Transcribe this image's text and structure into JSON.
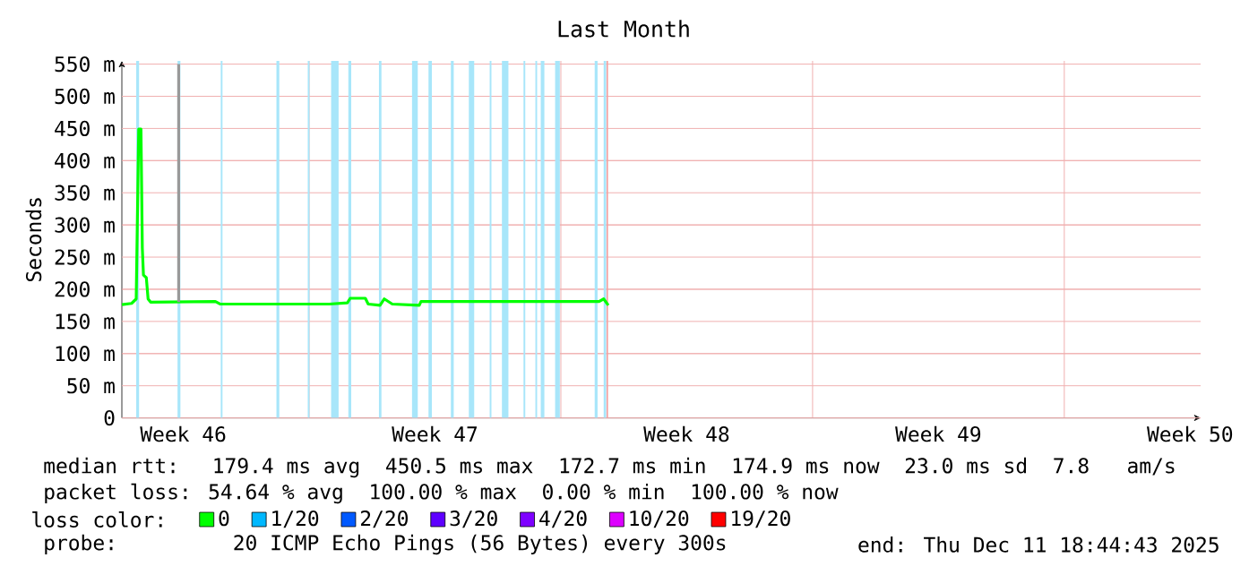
{
  "chart_data": {
    "type": "line",
    "title": "Last Month",
    "ylabel": "Seconds",
    "legend_title": "loss color:",
    "legend": "bottom",
    "grid": true,
    "xlim": [
      "2025-11-11T19:00",
      "2025-12-11T19:00"
    ],
    "ylim": [
      0,
      555
    ],
    "xticks": [
      {
        "value": "2025-11-13T12:00",
        "label": "Week 46"
      },
      {
        "value": "2025-11-17T00:00",
        "label": null
      },
      {
        "value": "2025-11-20T12:00",
        "label": "Week 47"
      },
      {
        "value": "2025-11-24T00:00",
        "label": null
      },
      {
        "value": "2025-11-27T12:00",
        "label": "Week 48"
      },
      {
        "value": "2025-12-01T00:00",
        "label": null
      },
      {
        "value": "2025-12-04T12:00",
        "label": "Week 49"
      },
      {
        "value": "2025-12-08T00:00",
        "label": null
      },
      {
        "value": "2025-12-11T12:00",
        "label": "Week 50"
      }
    ],
    "yticks": [
      0,
      {
        "value": 50,
        "label": "50 m"
      },
      {
        "value": 100,
        "label": "100 m"
      },
      {
        "value": 150,
        "label": "150 m"
      },
      {
        "value": 200,
        "label": "200 m"
      },
      {
        "value": 250,
        "label": "250 m"
      },
      {
        "value": 300,
        "label": "300 m"
      },
      {
        "value": 350,
        "label": "350 m"
      },
      {
        "value": 400,
        "label": "400 m"
      },
      {
        "value": 450,
        "label": "450 m"
      },
      {
        "value": 500,
        "label": "500 m"
      },
      {
        "value": 550,
        "label": "550 m"
      }
    ],
    "series": [
      {
        "name": "0",
        "color": "#00ff00",
        "x": [
          "2025-11-11T19:00",
          "2025-11-12T01:30",
          "2025-11-12T04:35",
          "2025-11-12T06:15",
          "2025-11-12T07:45",
          "2025-11-12T08:40",
          "2025-11-12T09:25",
          "2025-11-12T11:20",
          "2025-11-12T12:30",
          "2025-11-12T14:10",
          "2025-11-14T09:25",
          "2025-11-14T12:30",
          "2025-11-17T13:30",
          "2025-11-18T01:30",
          "2025-11-18T03:25",
          "2025-11-18T13:30",
          "2025-11-18T15:25",
          "2025-11-18T23:20",
          "2025-11-19T02:10",
          "2025-11-19T07:30",
          "2025-11-20T01:30",
          "2025-11-20T02:40",
          "2025-11-25T01:30",
          "2025-11-25T04:35",
          "2025-11-25T07:40"
        ],
        "values": [
          176,
          178,
          185,
          449,
          449,
          264,
          222,
          218,
          185,
          180,
          181,
          177,
          177,
          179,
          186,
          186,
          177,
          175,
          185,
          177,
          175,
          181,
          181,
          185,
          175
        ]
      },
      {
        "color": "#999999",
        "x": [
          "2025-11-13T08:55",
          "2025-11-13T08:55"
        ],
        "values": [
          180,
          550
        ]
      },
      {
        "name": "1/20",
        "color": "#00b8ff"
      },
      {
        "name": "2/20",
        "color": "#0059ff"
      },
      {
        "name": "3/20",
        "color": "#5e00ff"
      },
      {
        "name": "4/20",
        "color": "#7e00ff"
      },
      {
        "name": "10/20",
        "color": "#dd00ff"
      },
      {
        "name": "19/20",
        "color": "#ff0000"
      }
    ],
    "bands": [
      {
        "axis": "x",
        "from": "2025-11-12T04:35",
        "to": "2025-11-12T06:30",
        "color": "#a8e6fa"
      },
      {
        "axis": "x",
        "from": "2025-11-13T08:10",
        "to": "2025-11-13T10:05",
        "color": "#a8e6fa"
      },
      {
        "axis": "x",
        "from": "2025-11-14T13:00",
        "to": "2025-11-14T14:10",
        "color": "#a8e6fa"
      },
      {
        "axis": "x",
        "from": "2025-11-16T02:10",
        "to": "2025-11-16T04:05",
        "color": "#a8e6fa"
      },
      {
        "axis": "x",
        "from": "2025-11-16T23:05",
        "to": "2025-11-17T00:15",
        "color": "#a8e6fa"
      },
      {
        "axis": "x",
        "from": "2025-11-17T14:40",
        "to": "2025-11-17T19:40",
        "color": "#a8e6fa"
      },
      {
        "axis": "x",
        "from": "2025-11-18T02:10",
        "to": "2025-11-18T04:05",
        "color": "#a8e6fa"
      },
      {
        "axis": "x",
        "from": "2025-11-18T22:35",
        "to": "2025-11-19T00:15",
        "color": "#a8e6fa"
      },
      {
        "axis": "x",
        "from": "2025-11-19T20:40",
        "to": "2025-11-20T00:30",
        "color": "#a8e6fa"
      },
      {
        "axis": "x",
        "from": "2025-11-20T07:40",
        "to": "2025-11-20T09:55",
        "color": "#a8e6fa"
      },
      {
        "axis": "x",
        "from": "2025-11-20T22:35",
        "to": "2025-11-21T00:30",
        "color": "#a8e6fa"
      },
      {
        "axis": "x",
        "from": "2025-11-21T10:35",
        "to": "2025-11-21T14:10",
        "color": "#a8e6fa"
      },
      {
        "axis": "x",
        "from": "2025-11-22T00:30",
        "to": "2025-11-22T01:40",
        "color": "#a8e6fa"
      },
      {
        "axis": "x",
        "from": "2025-11-22T08:40",
        "to": "2025-11-22T13:00",
        "color": "#a8e6fa"
      },
      {
        "axis": "x",
        "from": "2025-11-22T23:05",
        "to": "2025-11-23T00:15",
        "color": "#a8e6fa"
      },
      {
        "axis": "x",
        "from": "2025-11-23T07:00",
        "to": "2025-11-23T08:10",
        "color": "#a8e6fa"
      },
      {
        "axis": "x",
        "from": "2025-11-23T10:35",
        "to": "2025-11-23T13:00",
        "color": "#a8e6fa"
      },
      {
        "axis": "x",
        "from": "2025-11-23T20:10",
        "to": "2025-11-23T23:20",
        "color": "#a8e6fa"
      },
      {
        "axis": "x",
        "from": "2025-11-24T22:35",
        "to": "2025-11-25T00:30",
        "color": "#a8e6fa"
      },
      {
        "axis": "x",
        "from": "2025-11-25T04:35",
        "to": "2025-11-25T06:15",
        "color": "#a8e6fa"
      },
      {
        "axis": "x",
        "from": "2025-11-25T06:30",
        "to": "2025-11-25T07:30",
        "color": "#f4a0a0"
      }
    ],
    "annotations": [
      "median rtt:  179.4 ms avg  450.5 ms max  172.7 ms min  174.9 ms now  23.0 ms sd  7.8   am/s",
      "packet loss: 54.64 % avg  100.00 % max  0.00 % min  100.00 % now",
      "probe:       20 ICMP Echo Pings (56 Bytes) every 300s",
      "end: Thu Dec 11 18:44:43 2025"
    ]
  }
}
